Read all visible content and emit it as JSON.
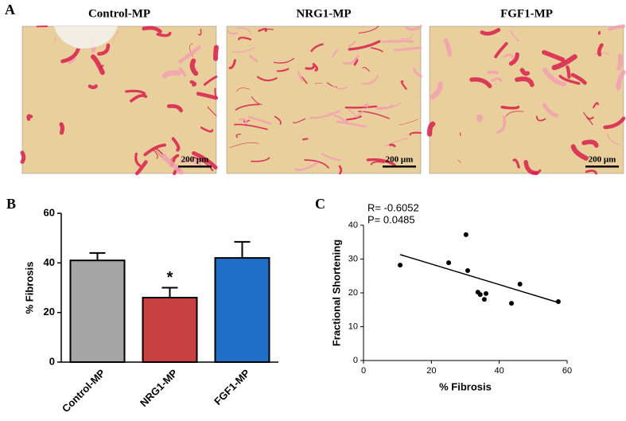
{
  "figure": {
    "panel_a": {
      "label": "A",
      "images": [
        {
          "title": "Control-MP",
          "scale_bar": "200 μm"
        },
        {
          "title": "NRG1-MP",
          "scale_bar": "200 μm"
        },
        {
          "title": "FGF1-MP",
          "scale_bar": "200 μm"
        }
      ]
    },
    "panel_b": {
      "label": "B"
    },
    "panel_c": {
      "label": "C"
    }
  },
  "chart_data": [
    {
      "type": "bar",
      "ylabel": "% Fibrosis",
      "categories": [
        "Control-MP",
        "NRG1-MP",
        "FGF1-MP"
      ],
      "values": [
        41,
        26,
        42
      ],
      "errors": [
        3,
        4,
        6.5
      ],
      "colors": [
        "#a5a5a5",
        "#c8403f",
        "#1f6fc8"
      ],
      "ylim": [
        0,
        60
      ],
      "yticks": [
        0,
        20,
        40,
        60
      ],
      "annotations": [
        {
          "text": "*",
          "category": "NRG1-MP"
        }
      ]
    },
    {
      "type": "scatter",
      "xlabel": "% Fibrosis",
      "ylabel": "Fractional Shortening",
      "x": [
        10.8,
        25.1,
        30.2,
        30.7,
        33.7,
        34.4,
        36.1,
        35.6,
        43.6,
        46.1,
        57.4
      ],
      "values": [
        28.2,
        28.9,
        37.2,
        26.6,
        20.2,
        19.5,
        19.8,
        18.1,
        16.9,
        22.6,
        17.4
      ],
      "color": "#000000",
      "xlim": [
        0,
        60
      ],
      "xticks": [
        0,
        20,
        40,
        60
      ],
      "ylim": [
        0,
        40
      ],
      "yticks": [
        0,
        10,
        20,
        30,
        40
      ],
      "fit": {
        "slope": -0.304,
        "intercept": 34.6
      },
      "annotations": [
        "R= -0.6052",
        "P= 0.0485"
      ]
    }
  ]
}
